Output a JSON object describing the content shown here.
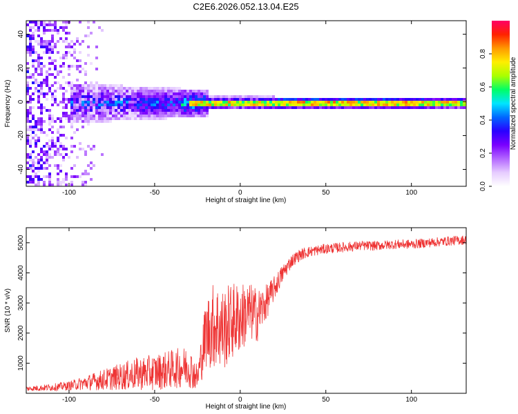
{
  "title": "C2E6.2026.052.13.04.E25",
  "chart_data": [
    {
      "type": "heatmap",
      "title": "C2E6.2026.052.13.04.E25",
      "xlabel": "Height of straight line (km)",
      "ylabel": "Frequency (Hz)",
      "xlim": [
        -125,
        132
      ],
      "ylim": [
        -50,
        48
      ],
      "xticks": [
        -100,
        -50,
        0,
        50,
        100
      ],
      "yticks": [
        -40,
        -20,
        0,
        20,
        40
      ],
      "colorbar": {
        "label": "Normalized spectral amplitude",
        "range": [
          0,
          1
        ],
        "ticks": [
          0.0,
          0.2,
          0.4,
          0.6,
          0.8
        ],
        "colors": [
          "#ffffff",
          "#e6ccff",
          "#b366ff",
          "#7a00ff",
          "#2a00ff",
          "#0066ff",
          "#00e5ff",
          "#00ff66",
          "#aaff00",
          "#ffee00",
          "#ff9900",
          "#ff2200",
          "#ff0066"
        ]
      },
      "features": {
        "broadband_noise_region_km": [
          -125,
          -80
        ],
        "signal_band_center_hz": 0,
        "signal_band_strong_from_km": -35,
        "signal_band_peak_km": [
          20,
          110
        ]
      }
    },
    {
      "type": "line",
      "xlabel": "Height of straight line (km)",
      "ylabel": "SNR (10 * v/v)",
      "xlim": [
        -125,
        132
      ],
      "ylim": [
        0,
        5500
      ],
      "xticks": [
        -100,
        -50,
        0,
        50,
        100
      ],
      "yticks": [
        1000,
        2000,
        3000,
        4000,
        5000
      ],
      "line_color": "#ee3333",
      "envelope": {
        "x": [
          -125,
          -110,
          -100,
          -90,
          -80,
          -70,
          -60,
          -50,
          -40,
          -30,
          -25,
          -20,
          -15,
          -10,
          -5,
          0,
          5,
          10,
          15,
          20,
          25,
          30,
          35,
          40,
          50,
          60,
          70,
          80,
          90,
          100,
          110,
          120,
          132
        ],
        "mean": [
          150,
          200,
          250,
          350,
          450,
          550,
          650,
          700,
          800,
          900,
          500,
          2000,
          2300,
          2100,
          2400,
          2500,
          2700,
          2600,
          3000,
          3500,
          4000,
          4400,
          4600,
          4700,
          4800,
          4850,
          4900,
          4900,
          4950,
          4950,
          5000,
          5050,
          5100
        ],
        "spread": [
          80,
          120,
          150,
          250,
          350,
          450,
          550,
          600,
          650,
          700,
          450,
          1200,
          1500,
          1400,
          1300,
          1200,
          1000,
          900,
          600,
          400,
          300,
          220,
          200,
          180,
          170,
          170,
          160,
          160,
          160,
          160,
          160,
          160,
          160
        ]
      }
    }
  ]
}
